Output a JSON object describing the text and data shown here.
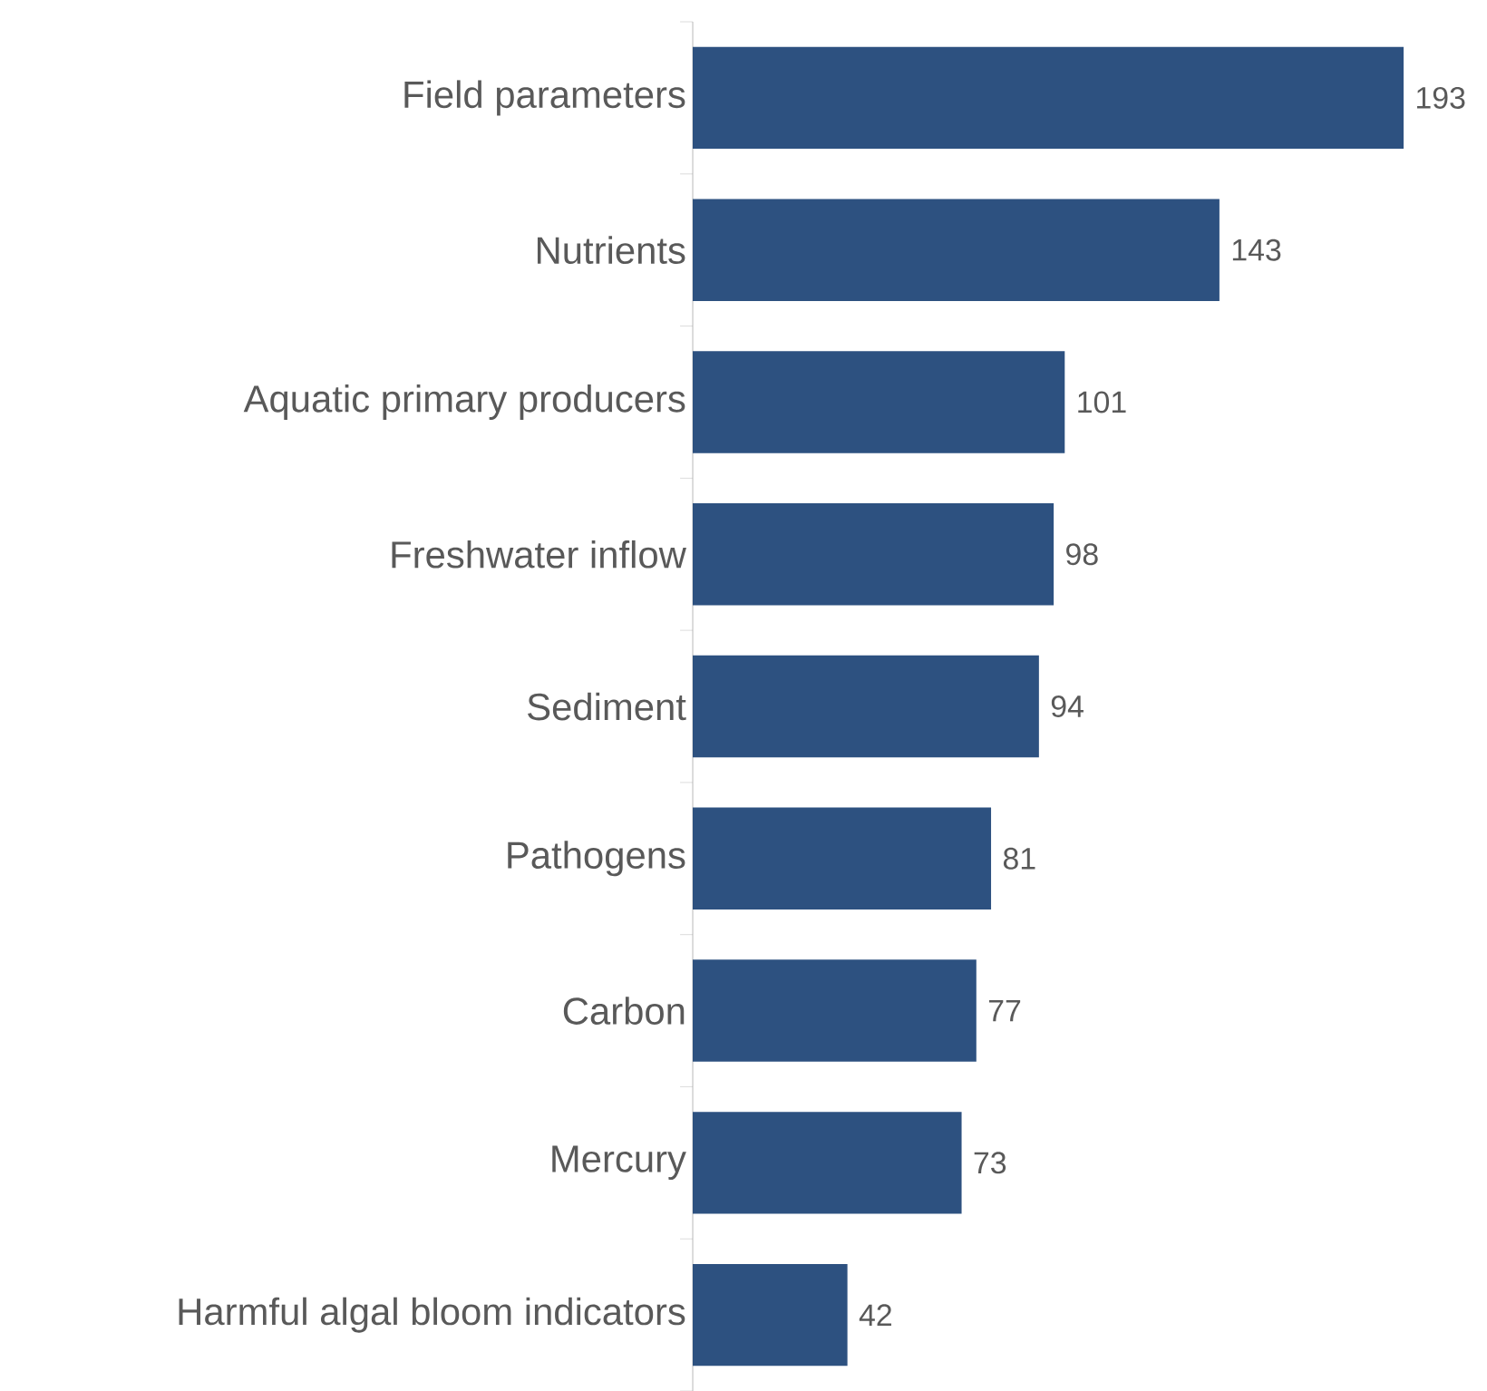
{
  "chart_data": {
    "type": "bar",
    "orientation": "horizontal",
    "data_labels": true,
    "color": "#2d5180",
    "categories": [
      "Field parameters",
      "Nutrients",
      "Aquatic primary producers",
      "Freshwater inflow",
      "Sediment",
      "Pathogens",
      "Carbon",
      "Mercury",
      "Harmful algal bloom indicators"
    ],
    "values": [
      193,
      143,
      101,
      98,
      94,
      81,
      77,
      73,
      42
    ]
  }
}
